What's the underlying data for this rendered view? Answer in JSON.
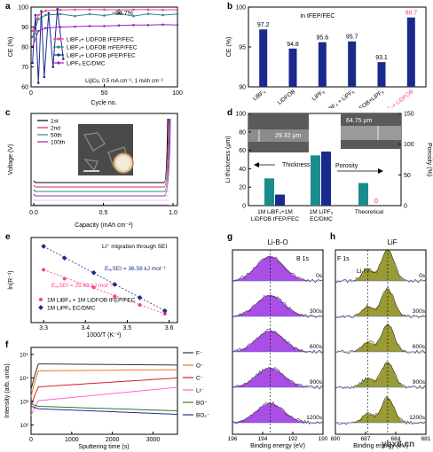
{
  "figure": {
    "watermark": "ybx8.cn"
  },
  "panels": {
    "a": "a",
    "b": "b",
    "c": "c",
    "d": "d",
    "e": "e",
    "f": "f",
    "g": "g",
    "h": "h"
  },
  "chart_data": [
    {
      "panel": "a",
      "type": "line",
      "xlabel": "Cycle no.",
      "ylabel": "CE (%)",
      "xlim": [
        0,
        100
      ],
      "ylim": [
        60,
        100
      ],
      "xticks": [
        0,
        50,
        100
      ],
      "yticks": [
        60,
        70,
        80,
        90,
        100
      ],
      "annotation": "~98.7%",
      "condition_text": "Li||Cu, 0.5 mA cm⁻², 1 mAh cm⁻²",
      "series": [
        {
          "name": "LiBF₄+ LiDFOB tFEP/FEC",
          "color": "#ff3c8c",
          "x": [
            1,
            5,
            10,
            20,
            30,
            40,
            50,
            60,
            70,
            80,
            90,
            100
          ],
          "y": [
            88,
            96,
            98.2,
            98.6,
            98.7,
            98.7,
            98.7,
            98.6,
            98.7,
            98.7,
            98.6,
            98.7
          ]
        },
        {
          "name": "LiBF₄+ LiDFOB mFEP/FEC",
          "color": "#2a8a86",
          "x": [
            1,
            5,
            10,
            20,
            30,
            40,
            50,
            60,
            70,
            80,
            90,
            100
          ],
          "y": [
            85,
            94,
            96,
            96.5,
            95.5,
            96.5,
            95.8,
            96.8,
            95.5,
            96.6,
            96,
            96.5
          ]
        },
        {
          "name": "LiBF₄+ LiDFOB pFEP/FEC",
          "color": "#1a2a8c",
          "x": [
            1,
            3,
            5,
            7,
            9,
            12,
            15,
            18,
            22
          ],
          "y": [
            72,
            96,
            62,
            98,
            65,
            97,
            70,
            99,
            74
          ]
        },
        {
          "name": "LiPF₆ EC/DMC",
          "color": "#a020c0",
          "x": [
            1,
            5,
            10,
            20,
            30,
            40,
            50,
            60,
            70,
            80,
            90,
            100
          ],
          "y": [
            80,
            88,
            89.5,
            90,
            90.2,
            90.5,
            90.5,
            90.8,
            91,
            91,
            91.2,
            91
          ]
        }
      ]
    },
    {
      "panel": "b",
      "type": "bar",
      "ylabel": "CE (%)",
      "ylim": [
        90,
        100
      ],
      "yticks": [
        90,
        95,
        100
      ],
      "annotation": "in tFEP/FEC",
      "categories": [
        "LiBF₄",
        "LiDFOB",
        "LiPF₆",
        "LiBF₄ + LiPF₆",
        "LiDFOB+LiPF₆",
        "LiBF₄+ LiDFOB"
      ],
      "values": [
        97.2,
        94.8,
        95.6,
        95.7,
        93.1,
        98.7
      ],
      "value_labels": [
        "97.2",
        "94.8",
        "95.6",
        "95.7",
        "93.1",
        "98.7"
      ],
      "highlight_index": 5,
      "bar_color": "#1a2a8c",
      "highlight_color": "#ff3c8c"
    },
    {
      "panel": "c",
      "type": "line",
      "xlabel": "Capacity (mAh cm⁻²)",
      "ylabel": "Voltage (V)",
      "xlim": [
        0,
        1.0
      ],
      "xticks": [
        0.0,
        0.5,
        1.0
      ],
      "series": [
        {
          "name": "1st",
          "color": "#000000"
        },
        {
          "name": "2nd",
          "color": "#e0245a"
        },
        {
          "name": "50th",
          "color": "#2a8a86"
        },
        {
          "name": "100th",
          "color": "#a020c0"
        }
      ]
    },
    {
      "panel": "d",
      "type": "bar",
      "ylabel": "Li thickness (µm)",
      "ylabel_right": "Porosity (%)",
      "ylim": [
        0,
        100
      ],
      "ylim_right": [
        0,
        150
      ],
      "yticks": [
        0,
        20,
        40,
        60,
        80,
        100
      ],
      "yticks_right": [
        0,
        50,
        100,
        150
      ],
      "groups": [
        "1M LiBF₄+1M LiDFOB tFEP/FEC",
        "1M LiPF₆ EC/DMC",
        "Theoretical"
      ],
      "thickness": [
        29.5,
        54.5,
        24.5
      ],
      "porosity": [
        18,
        88,
        0
      ],
      "arrow_labels": [
        "Thickness",
        "Porosity"
      ],
      "zero_label": "0",
      "inset_labels": [
        "29.32 µm",
        "64.75 µm"
      ],
      "thickness_color": "#1a8c8a",
      "porosity_color": "#1a2a8c"
    },
    {
      "panel": "e",
      "type": "scatter",
      "xlabel": "1000/T (K⁻¹)",
      "ylabel": "ln(R⁻¹)",
      "xlim": [
        3.27,
        3.62
      ],
      "xticks": [
        3.3,
        3.4,
        3.5,
        3.6
      ],
      "annotation": "Li⁺ migration through SEI",
      "series": [
        {
          "name": "1M LiBF₄ + 1M LiDFOB tFEP/FEC",
          "color": "#ff3c8c",
          "x": [
            3.3,
            3.35,
            3.42,
            3.47,
            3.53,
            3.59
          ],
          "y": [
            -4.0,
            -4.6,
            -5.2,
            -5.8,
            -6.4,
            -7.0
          ],
          "energy_label": "Eₐ,SEI = 25.89 kJ mol⁻¹"
        },
        {
          "name": "1M LiPF₆ EC/DMC",
          "color": "#1a2a8c",
          "x": [
            3.3,
            3.35,
            3.42,
            3.47,
            3.53,
            3.59
          ],
          "y": [
            -2.4,
            -3.2,
            -4.2,
            -5.0,
            -5.9,
            -6.8
          ],
          "energy_label": "Eₐ,SEI = 36.58 kJ mol⁻¹"
        }
      ]
    },
    {
      "panel": "f",
      "type": "line",
      "xlabel": "Sputtering time (s)",
      "ylabel": "Intensity (arb. units)",
      "xlim": [
        0,
        3600
      ],
      "xticks": [
        0,
        1000,
        2000,
        3000
      ],
      "ylog": true,
      "ytick_labels": [
        "10²",
        "10³",
        "10⁴",
        "10⁵"
      ],
      "series": [
        {
          "name": "F⁻",
          "color": "#333333"
        },
        {
          "name": "O⁻",
          "color": "#e87722"
        },
        {
          "name": "C⁻",
          "color": "#d0202a"
        },
        {
          "name": "Li⁻",
          "color": "#ff66cc"
        },
        {
          "name": "BO⁻",
          "color": "#2a7a2a"
        },
        {
          "name": "BO₂⁻",
          "color": "#2a2a8c"
        }
      ]
    },
    {
      "panel": "g",
      "type": "area",
      "title": "Li-B-O",
      "peak_label": "B 1s",
      "xlabel": "Binding energy (eV)",
      "xlim": [
        196,
        190
      ],
      "xticks": [
        196,
        194,
        192,
        190
      ],
      "times": [
        "0s",
        "300s",
        "600s",
        "900s",
        "1200s"
      ],
      "fill_color": "#9b30e0"
    },
    {
      "panel": "h",
      "type": "area",
      "title": "LiF",
      "peak_label": "F 1s",
      "component_label": "LiₓBFᵧ",
      "xlabel": "Binding energy (eV)",
      "xlim": [
        690,
        681
      ],
      "xticks": [
        690,
        687,
        684,
        681
      ],
      "times": [
        "0s",
        "300s",
        "600s",
        "900s",
        "1200s"
      ],
      "fill_color": "#8a8a12"
    }
  ]
}
